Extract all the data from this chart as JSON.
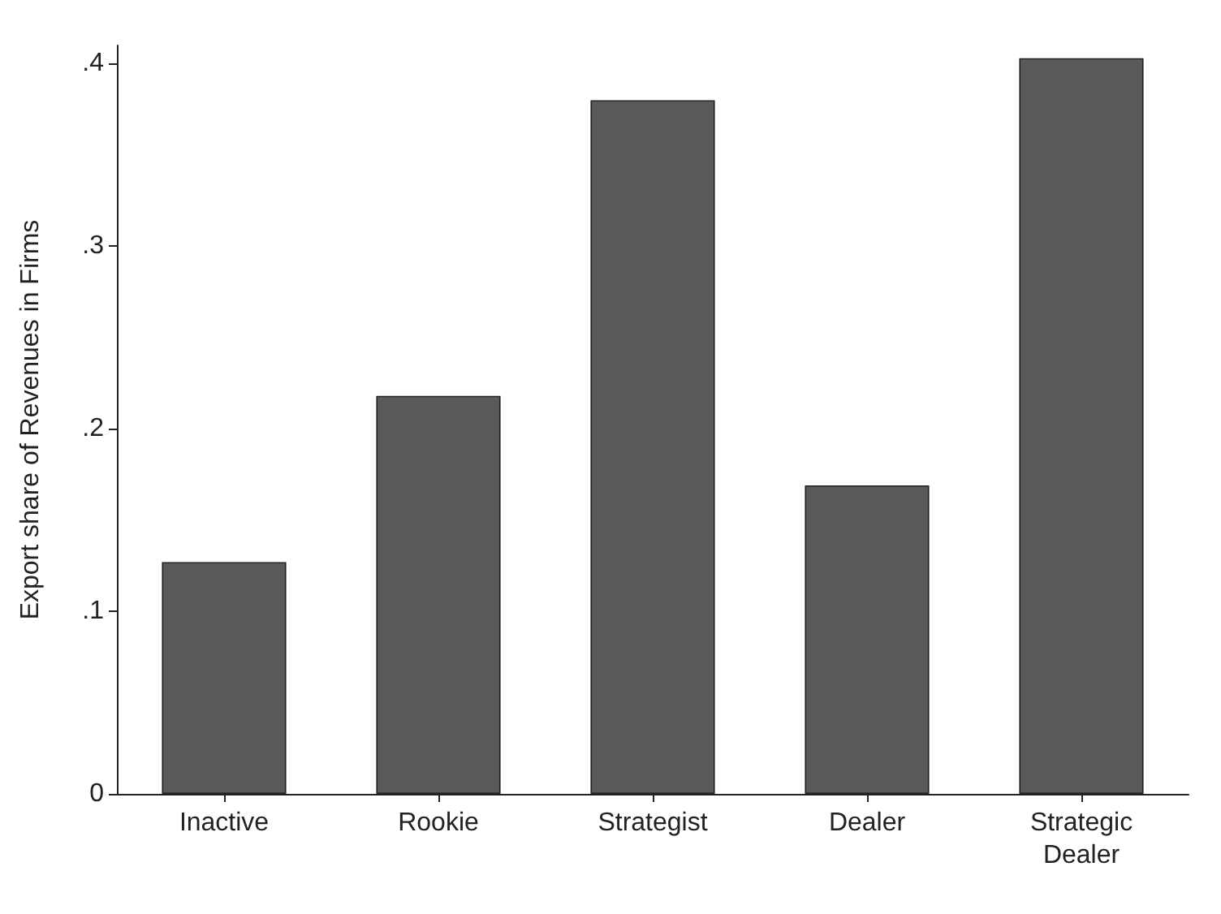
{
  "chart_data": {
    "type": "bar",
    "ylabel": "Export share of Revenues in Firms",
    "categories": [
      "Inactive",
      "Rookie",
      "Strategist",
      "Dealer",
      "Strategic\nDealer"
    ],
    "values": [
      0.127,
      0.218,
      0.38,
      0.169,
      0.403
    ],
    "color": "#58595b",
    "ylim": [
      0,
      0.41
    ],
    "yticks": [
      {
        "value": 0,
        "label": "0"
      },
      {
        "value": 0.1,
        "label": ".1"
      },
      {
        "value": 0.2,
        "label": ".2"
      },
      {
        "value": 0.3,
        "label": ".3"
      },
      {
        "value": 0.4,
        "label": ".4"
      }
    ],
    "grid": false
  }
}
